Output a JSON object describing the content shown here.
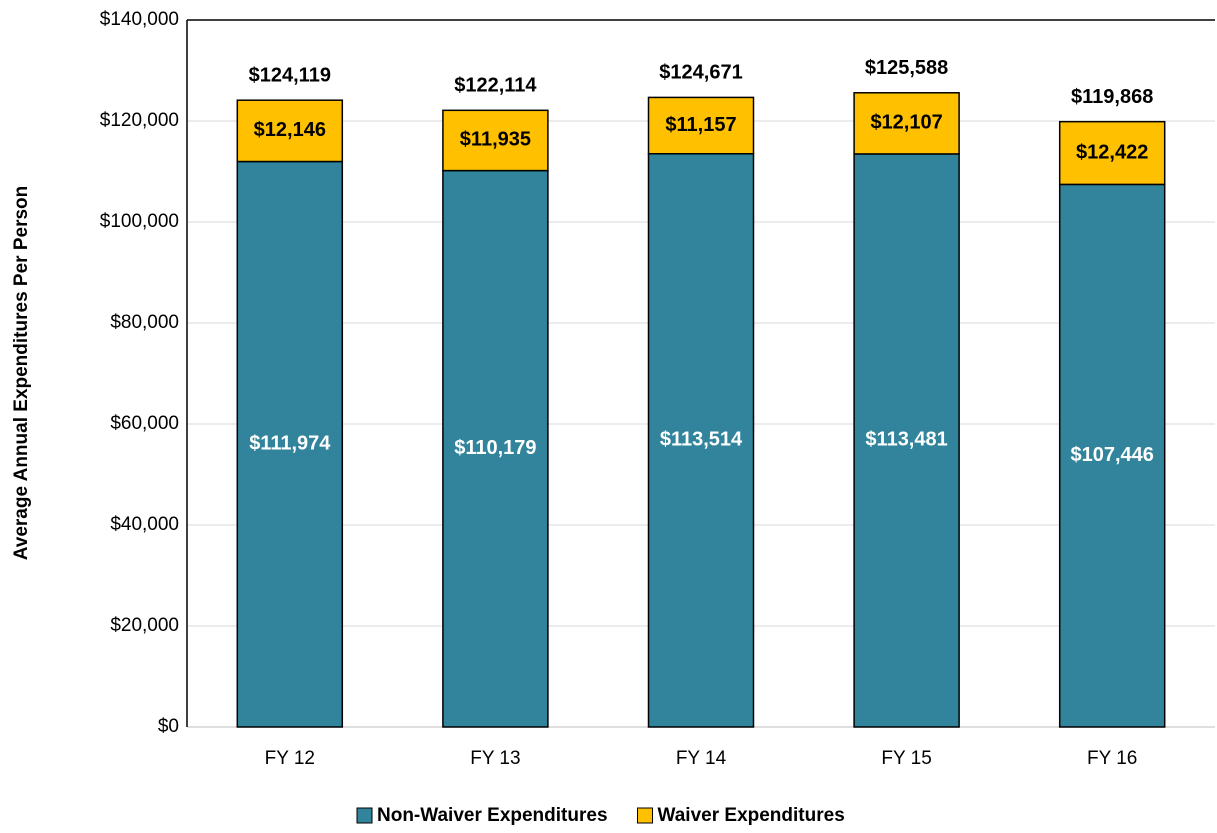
{
  "chart_data": {
    "type": "stacked_bar",
    "y_axis_label": "Average Annual Expenditures Per Person",
    "categories": [
      "FY 12",
      "FY 13",
      "FY 14",
      "FY 15",
      "FY 16"
    ],
    "series": [
      {
        "name": "Non-Waiver Expenditures",
        "color": "#31849b",
        "label_color": "#ffffff",
        "values": [
          111974,
          110179,
          113514,
          113481,
          107446
        ],
        "value_labels": [
          "$111,974",
          "$110,179",
          "$113,514",
          "$113,481",
          "$107,446"
        ]
      },
      {
        "name": "Waiver Expenditures",
        "color": "#ffc000",
        "label_color": "#000000",
        "values": [
          12146,
          11935,
          11157,
          12107,
          12422
        ],
        "value_labels": [
          "$12,146",
          "$11,935",
          "$11,157",
          "$12,107",
          "$12,422"
        ]
      }
    ],
    "total_labels": [
      "$124,119",
      "$122,114",
      "$124,671",
      "$125,588",
      "$119,868"
    ],
    "ylim": [
      0,
      140000
    ],
    "yticks": [
      {
        "value": 0,
        "label": "$0"
      },
      {
        "value": 20000,
        "label": "$20,000"
      },
      {
        "value": 40000,
        "label": "$40,000"
      },
      {
        "value": 60000,
        "label": "$60,000"
      },
      {
        "value": 80000,
        "label": "$80,000"
      },
      {
        "value": 100000,
        "label": "$100,000"
      },
      {
        "value": 120000,
        "label": "$120,000"
      },
      {
        "value": 140000,
        "label": "$140,000"
      }
    ],
    "grid": true,
    "legend": "bottom"
  }
}
